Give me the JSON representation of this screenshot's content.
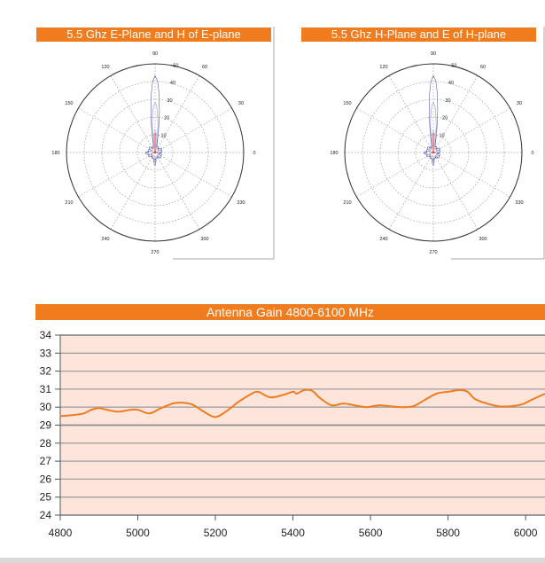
{
  "colors": {
    "banner": "#f07c1e",
    "gain_line": "#f07c1e",
    "plot_bg": "#fde5dc",
    "pattern_blue": "#5a5fb0",
    "pattern_red": "#e0251b"
  },
  "chart_data": [
    {
      "type": "polar",
      "title": "5.5 Ghz E-Plane and H of E-plane",
      "angle_labels": [
        "90",
        "60",
        "30",
        "0",
        "330",
        "300",
        "270",
        "240",
        "210",
        "180",
        "150",
        "120"
      ],
      "radial_labels": [
        "10",
        "20",
        "30",
        "40",
        "50"
      ],
      "radial_range": [
        0,
        50
      ],
      "grid": true
    },
    {
      "type": "polar",
      "title": "5.5 Ghz H-Plane and E of H-plane",
      "angle_labels": [
        "90",
        "60",
        "30",
        "0",
        "330",
        "300",
        "270",
        "240",
        "210",
        "180",
        "150",
        "120"
      ],
      "radial_labels": [
        "10",
        "20",
        "30",
        "40",
        "50"
      ],
      "radial_range": [
        0,
        50
      ],
      "grid": true
    },
    {
      "type": "line",
      "title": "Antenna Gain 4800-6100 MHz",
      "xlabel": "",
      "ylabel": "",
      "xlim": [
        4800,
        6050
      ],
      "ylim": [
        24,
        34
      ],
      "x_ticks": [
        4800,
        5000,
        5200,
        5400,
        5600,
        5800,
        6000
      ],
      "y_ticks": [
        24,
        25,
        26,
        27,
        28,
        29,
        30,
        31,
        32,
        33,
        34
      ],
      "grid": true,
      "series": [
        {
          "x": [
            4800,
            4830,
            4860,
            4880,
            4900,
            4920,
            4950,
            4980,
            5000,
            5030,
            5060,
            5090,
            5110,
            5140,
            5170,
            5200,
            5230,
            5260,
            5290,
            5310,
            5340,
            5370,
            5400,
            5410,
            5430,
            5450,
            5470,
            5500,
            5530,
            5560,
            5590,
            5620,
            5650,
            5680,
            5710,
            5740,
            5770,
            5800,
            5830,
            5850,
            5870,
            5900,
            5930,
            5960,
            5990,
            6010,
            6030,
            6050
          ],
          "y": [
            29.5,
            29.55,
            29.65,
            29.85,
            29.95,
            29.85,
            29.75,
            29.85,
            29.85,
            29.65,
            29.95,
            30.2,
            30.25,
            30.15,
            29.75,
            29.45,
            29.8,
            30.3,
            30.7,
            30.85,
            30.55,
            30.65,
            30.85,
            30.75,
            30.95,
            30.9,
            30.5,
            30.1,
            30.2,
            30.1,
            30.0,
            30.1,
            30.05,
            30.0,
            30.05,
            30.4,
            30.75,
            30.85,
            30.95,
            30.85,
            30.45,
            30.2,
            30.05,
            30.05,
            30.15,
            30.35,
            30.55,
            30.75
          ]
        }
      ]
    }
  ]
}
